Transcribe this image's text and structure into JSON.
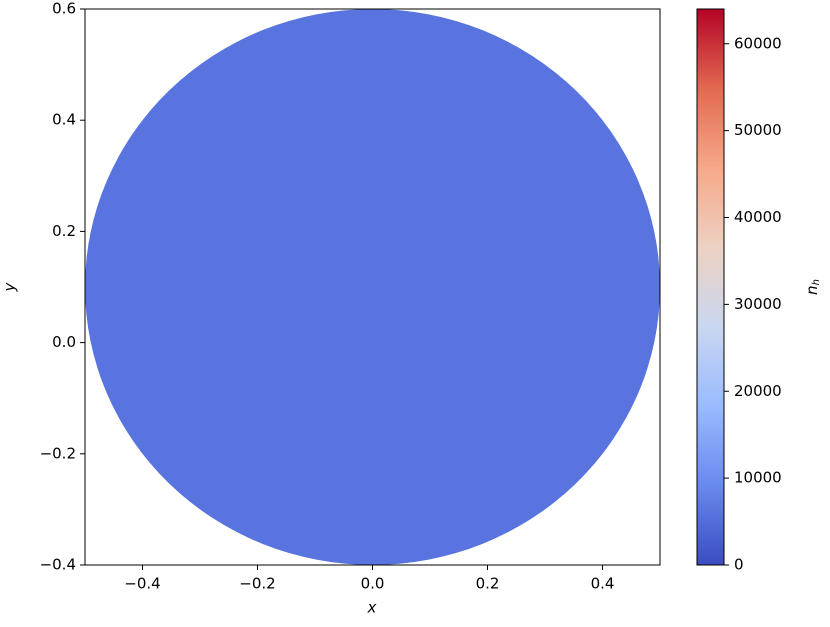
{
  "chart_data": {
    "type": "filled-circle",
    "xlabel": "x",
    "ylabel": "y",
    "colorbar_label": "n",
    "colorbar_label_sub": "h",
    "xlim": [
      -0.5,
      0.5
    ],
    "ylim": [
      -0.4,
      0.6
    ],
    "xticks": [
      {
        "value": -0.4,
        "label": "−0.4"
      },
      {
        "value": -0.2,
        "label": "−0.2"
      },
      {
        "value": 0.0,
        "label": "0.0"
      },
      {
        "value": 0.2,
        "label": "0.2"
      },
      0.4
    ],
    "yticks": [
      {
        "value": -0.4,
        "label": "−0.4"
      },
      {
        "value": -0.2,
        "label": "−0.2"
      },
      {
        "value": 0.0,
        "label": "0.0"
      },
      {
        "value": 0.2,
        "label": "0.2"
      },
      0.4,
      0.6
    ],
    "circle": {
      "center_x": 0,
      "center_y": 0.1,
      "radius": 0.5,
      "value": 6000
    },
    "clim": [
      0,
      64000
    ],
    "cticks": [
      0,
      10000,
      20000,
      30000,
      40000,
      50000,
      60000
    ],
    "colormap": [
      "#3b4cc0",
      "#6889ee",
      "#9abbff",
      "#c9d7f0",
      "#edd1c2",
      "#f7a889",
      "#e26952",
      "#b40426"
    ]
  }
}
